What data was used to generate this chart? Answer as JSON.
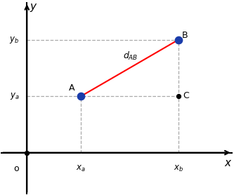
{
  "point_A": [
    2.5,
    3.0
  ],
  "point_B": [
    7.0,
    6.0
  ],
  "point_C": [
    7.0,
    3.0
  ],
  "x_lim": [
    -1.2,
    9.5
  ],
  "y_lim": [
    -2.2,
    8.0
  ],
  "label_A": "A",
  "label_B": "B",
  "label_C": "C",
  "label_x": "x",
  "label_y": "y",
  "label_o": "o",
  "point_color": "#1a3caa",
  "line_color": "red",
  "dashed_color": "#aaaaaa",
  "axis_color": "black",
  "text_color": "black",
  "bg_color": "#ffffff",
  "point_size": 55,
  "small_point_size": 18,
  "axis_linewidth": 1.5,
  "dashed_linewidth": 0.9
}
